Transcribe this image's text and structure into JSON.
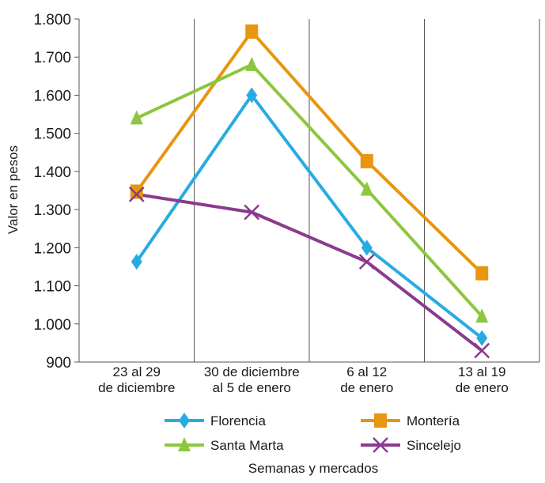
{
  "chart_data": {
    "type": "line",
    "title": "",
    "xlabel": "Semanas y mercados",
    "ylabel": "Valor en pesos",
    "ylim": [
      900,
      1800
    ],
    "yticks": [
      "900",
      "1.000",
      "1.100",
      "1.200",
      "1.300",
      "1.400",
      "1.500",
      "1.600",
      "1.700",
      "1.800"
    ],
    "categories": [
      [
        "23 al 29",
        "de diciembre"
      ],
      [
        "30 de diciembre",
        "al 5 de enero"
      ],
      [
        "6 al 12",
        "de enero"
      ],
      [
        "13 al 19",
        "de enero"
      ]
    ],
    "grid": "vertical",
    "legend_position": "bottom",
    "series": [
      {
        "name": "Florencia",
        "color": "#29ABE2",
        "marker": "diamond",
        "values": [
          1163,
          1600,
          1200,
          963
        ]
      },
      {
        "name": "Montería",
        "color": "#E8960F",
        "marker": "square",
        "values": [
          1347,
          1767,
          1427,
          1133
        ]
      },
      {
        "name": "Santa Marta",
        "color": "#8DC63F",
        "marker": "triangle",
        "values": [
          1540,
          1680,
          1353,
          1020
        ]
      },
      {
        "name": "Sincelejo",
        "color": "#8B3A8E",
        "marker": "x",
        "values": [
          1340,
          1293,
          1163,
          930
        ]
      }
    ]
  }
}
